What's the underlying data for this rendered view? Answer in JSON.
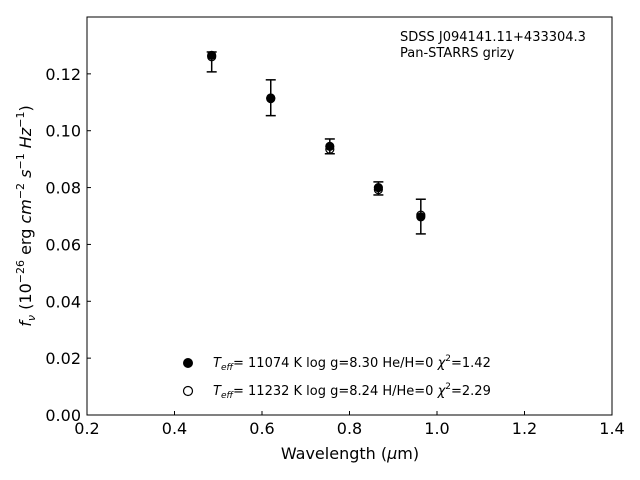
{
  "chart_data": {
    "type": "scatter",
    "annotation_lines": [
      "SDSS J094141.11+433304.3",
      "Pan-STARRS grizy"
    ],
    "xlabel": "Wavelength (μm)",
    "ylabel": "f_ν (10^-26 erg cm^-2 s^-1 Hz^-1)",
    "xlim": [
      0.2,
      1.4
    ],
    "ylim": [
      0.0,
      0.14
    ],
    "x_ticks": [
      0.2,
      0.4,
      0.6,
      0.8,
      1.0,
      1.2,
      1.4
    ],
    "y_ticks": [
      0.0,
      0.02,
      0.04,
      0.06,
      0.08,
      0.1,
      0.12
    ],
    "x_tick_labels": [
      "0.2",
      "0.4",
      "0.6",
      "0.8",
      "1.0",
      "1.2",
      "1.4"
    ],
    "y_tick_labels": [
      "0.00",
      "0.02",
      "0.04",
      "0.06",
      "0.08",
      "0.10",
      "0.12"
    ],
    "grid": false,
    "legend_position": "lower-center",
    "observed": {
      "x": [
        0.485,
        0.62,
        0.755,
        0.866,
        0.963
      ],
      "y": [
        0.1242,
        0.1116,
        0.0945,
        0.0797,
        0.0698
      ],
      "err": [
        0.0035,
        0.0063,
        0.0026,
        0.0023,
        0.0061
      ]
    },
    "series": [
      {
        "name": "Teff= 11074 K  log g=8.30  He/H=0  χ2=1.42",
        "marker": "filled-circle",
        "x": [
          0.485,
          0.62,
          0.755,
          0.866,
          0.963
        ],
        "y": [
          0.1265,
          0.1115,
          0.0945,
          0.08,
          0.0697
        ]
      },
      {
        "name": "Teff= 11232 K  log g=8.24  H/He=0  χ2=2.29",
        "marker": "open-circle",
        "x": [
          0.485,
          0.62,
          0.755,
          0.866,
          0.963
        ],
        "y": [
          0.126,
          0.1113,
          0.0935,
          0.0793,
          0.0703
        ]
      }
    ],
    "legend": [
      {
        "marker": "filled-circle",
        "teff": "= 11074 K  log g=8.30  He/H=0  ",
        "chi": "=1.42"
      },
      {
        "marker": "open-circle",
        "teff": "= 11232 K  log g=8.24  H/He=0  ",
        "chi": "=2.29"
      }
    ]
  }
}
